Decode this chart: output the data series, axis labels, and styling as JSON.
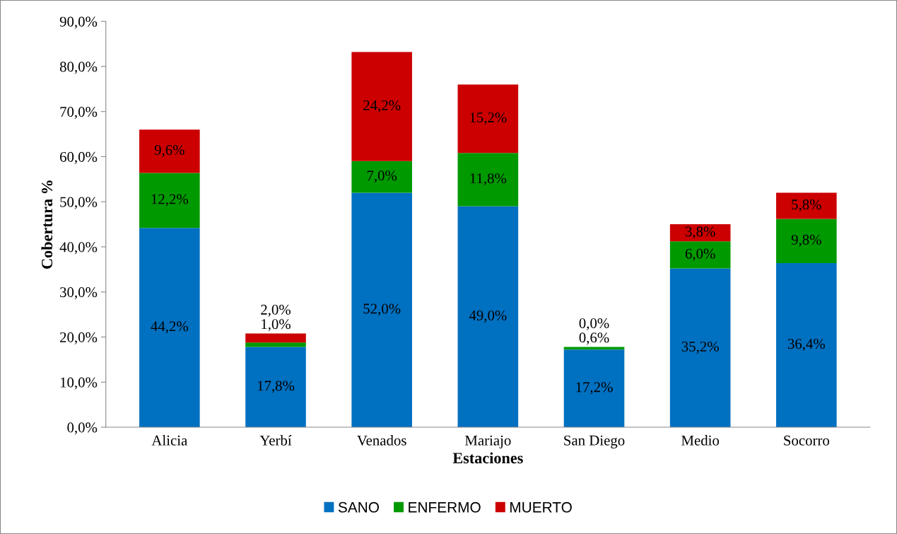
{
  "chart_data": {
    "type": "bar",
    "stacked": true,
    "xlabel": "Estaciones",
    "ylabel": "Cobertura %",
    "categories": [
      "Alicia",
      "Yerbí",
      "Venados",
      "Mariajo",
      "San Diego",
      "Medio",
      "Socorro"
    ],
    "series": [
      {
        "name": "SANO",
        "color": "#0070c0",
        "values": [
          44.2,
          17.8,
          52.0,
          49.0,
          17.2,
          35.2,
          36.4
        ],
        "value_labels": [
          "44,2%",
          "17,8%",
          "52,0%",
          "49,0%",
          "17,2%",
          "35,2%",
          "36,4%"
        ]
      },
      {
        "name": "ENFERMO",
        "color": "#009900",
        "values": [
          12.2,
          1.0,
          7.0,
          11.8,
          0.6,
          6.0,
          9.8
        ],
        "value_labels": [
          "12,2%",
          "1,0%",
          "7,0%",
          "11,8%",
          "0,6%",
          "6,0%",
          "9,8%"
        ]
      },
      {
        "name": "MUERTO",
        "color": "#cc0000",
        "values": [
          9.6,
          2.0,
          24.2,
          15.2,
          0.0,
          3.8,
          5.8
        ],
        "value_labels": [
          "9,6%",
          "2,0%",
          "24,2%",
          "15,2%",
          "0,0%",
          "3,8%",
          "5,8%"
        ]
      }
    ],
    "ylim": [
      0,
      90
    ],
    "yticks": [
      {
        "value": 0,
        "label": "0,0%"
      },
      {
        "value": 10,
        "label": "10,0%"
      },
      {
        "value": 20,
        "label": "20,0%"
      },
      {
        "value": 30,
        "label": "30,0%"
      },
      {
        "value": 40,
        "label": "40,0%"
      },
      {
        "value": 50,
        "label": "50,0%"
      },
      {
        "value": 60,
        "label": "60,0%"
      },
      {
        "value": 70,
        "label": "70,0%"
      },
      {
        "value": 80,
        "label": "80,0%"
      },
      {
        "value": 90,
        "label": "90,0%"
      }
    ],
    "grid": false,
    "legend": "bottom"
  }
}
